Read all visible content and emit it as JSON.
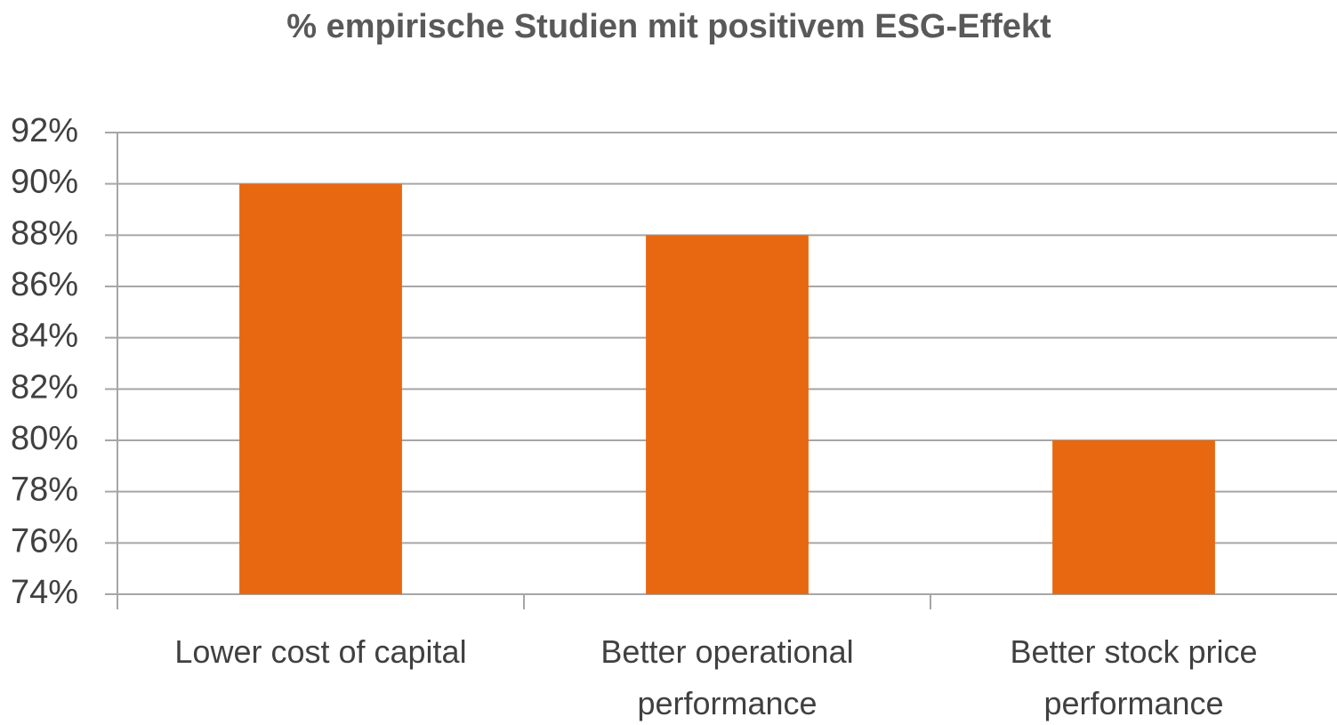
{
  "chart_data": {
    "type": "bar",
    "title": "% empirische Studien mit positivem ESG-Effekt",
    "categories": [
      "Lower cost of capital",
      "Better operational performance",
      "Better stock price performance"
    ],
    "values": [
      90,
      88,
      80
    ],
    "color": "#e86811",
    "ylim": [
      74,
      92
    ],
    "yticks": [
      {
        "value": 74,
        "label": "74%"
      },
      {
        "value": 76,
        "label": "76%"
      },
      {
        "value": 78,
        "label": "78%"
      },
      {
        "value": 80,
        "label": "80%"
      },
      {
        "value": 82,
        "label": "82%"
      },
      {
        "value": 84,
        "label": "84%"
      },
      {
        "value": 86,
        "label": "86%"
      },
      {
        "value": 88,
        "label": "88%"
      },
      {
        "value": 90,
        "label": "90%"
      },
      {
        "value": 92,
        "label": "92%"
      }
    ],
    "grid": true
  }
}
